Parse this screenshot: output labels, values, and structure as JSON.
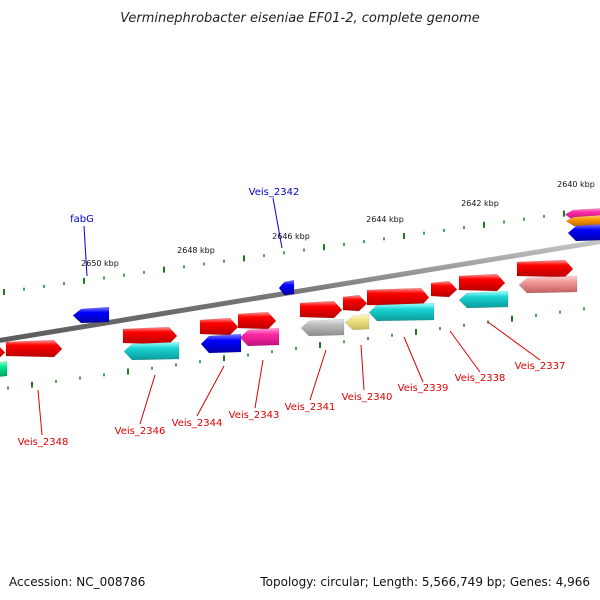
{
  "title": "Verminephrobacter eiseniae EF01-2, complete genome",
  "footer": {
    "accession": "Accession: NC_008786",
    "summary": "Topology: circular; Length: 5,566,749 bp; Genes: 4,966"
  },
  "colors": {
    "backbone": "#888888",
    "tick": "#1a7f1a",
    "label_forward": "#0000cc",
    "label_reverse": "#dd0000"
  },
  "scale_labels": [
    "2640 kbp",
    "2642 kbp",
    "2644 kbp",
    "2646 kbp",
    "2648 kbp",
    "2650 kbp"
  ],
  "forward_labels": [
    "Veis_2342",
    "fabG"
  ],
  "reverse_labels": [
    "Veis_2337",
    "Veis_2338",
    "Veis_2339",
    "Veis_2340",
    "Veis_2341",
    "Veis_2343",
    "Veis_2344",
    "Veis_2346",
    "Veis_2348"
  ],
  "feature_colors": [
    "red",
    "cyan",
    "blue",
    "magenta",
    "gray",
    "khaki",
    "salmon",
    "orange",
    "spring-green"
  ]
}
